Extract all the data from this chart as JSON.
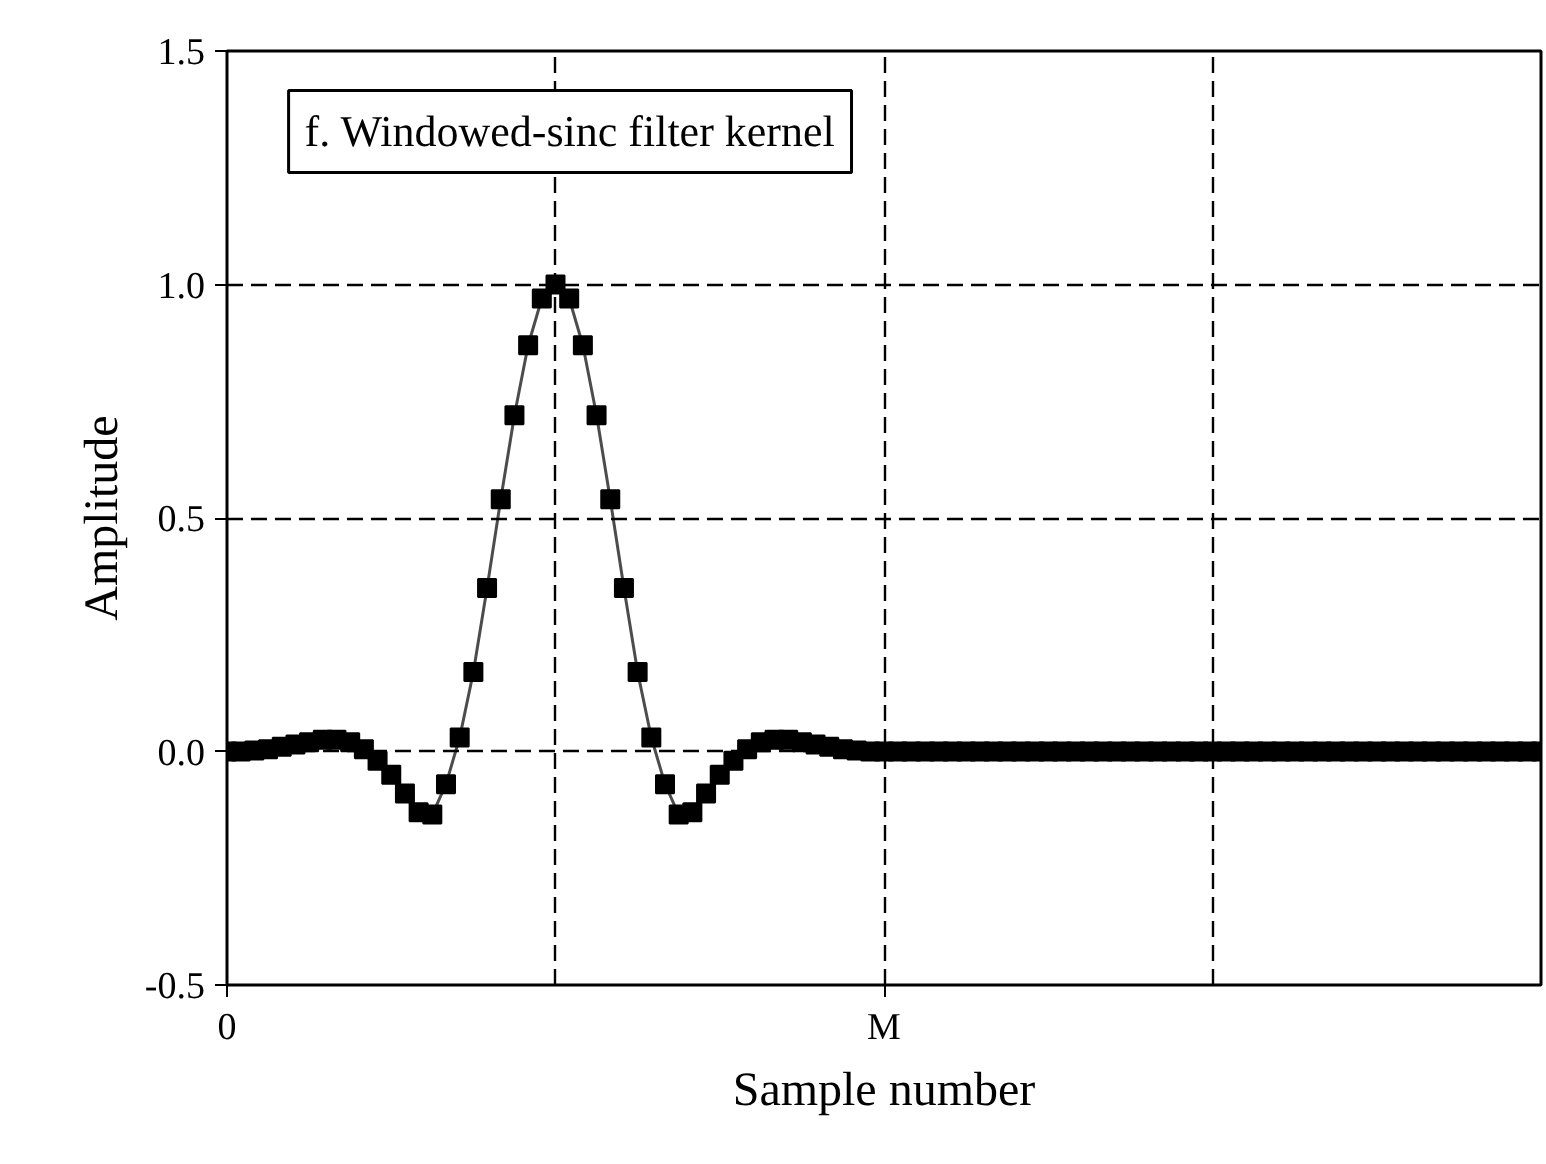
{
  "chart_data": {
    "type": "line",
    "title": "f. Windowed-sinc filter kernel",
    "xlabel": "Sample number",
    "ylabel": "Amplitude",
    "categories": [
      "0",
      null,
      null,
      null,
      null,
      null,
      null,
      null,
      null,
      null,
      null,
      null,
      null,
      null,
      null,
      null,
      null,
      null,
      null,
      null,
      null,
      null,
      null,
      null,
      null,
      null,
      null,
      null,
      null,
      null,
      null,
      null,
      null,
      null,
      null,
      null,
      null,
      null,
      null,
      null,
      null,
      null,
      null,
      null,
      null,
      null,
      null,
      null,
      "M",
      null,
      null,
      null,
      null,
      null,
      null,
      null,
      null,
      null,
      null,
      null,
      null,
      null,
      null,
      null,
      null,
      null,
      null,
      null,
      null,
      null,
      null,
      null,
      null,
      null,
      null,
      null,
      null,
      null,
      null,
      null,
      null,
      null,
      null,
      null,
      null,
      null,
      null,
      null,
      null,
      null,
      null,
      null,
      null,
      null,
      null,
      null,
      null
    ],
    "series": [
      {
        "color": "#000000",
        "values": [
          0,
          0,
          0.002,
          0.005,
          0.01,
          0.015,
          0.02,
          0.025,
          0.025,
          0.02,
          0.005,
          -0.02,
          -0.05,
          -0.09,
          -0.13,
          -0.135,
          -0.07,
          0.03,
          0.17,
          0.35,
          0.54,
          0.72,
          0.87,
          0.97,
          1.0,
          0.97,
          0.87,
          0.72,
          0.54,
          0.35,
          0.17,
          0.03,
          -0.07,
          -0.135,
          -0.13,
          -0.09,
          -0.05,
          -0.02,
          0.005,
          0.02,
          0.025,
          0.025,
          0.02,
          0.015,
          0.01,
          0.005,
          0.002,
          0,
          0,
          0,
          0,
          0,
          0,
          0,
          0,
          0,
          0,
          0,
          0,
          0,
          0,
          0,
          0,
          0,
          0,
          0,
          0,
          0,
          0,
          0,
          0,
          0,
          0,
          0,
          0,
          0,
          0,
          0,
          0,
          0,
          0,
          0,
          0,
          0,
          0,
          0,
          0,
          0,
          0,
          0,
          0,
          0,
          0,
          0,
          0,
          0,
          0
        ]
      }
    ],
    "ylim": [
      -0.5,
      1.5
    ],
    "yticks": [
      {
        "value": -0.5,
        "label": "-0.5"
      },
      {
        "value": 0,
        "label": "0.0"
      },
      {
        "value": 0.5,
        "label": "0.5"
      },
      {
        "value": 1,
        "label": "1.0"
      },
      {
        "value": 1.5,
        "label": "1.5"
      }
    ],
    "grid": true,
    "marker": "square",
    "line_style": "solid"
  }
}
